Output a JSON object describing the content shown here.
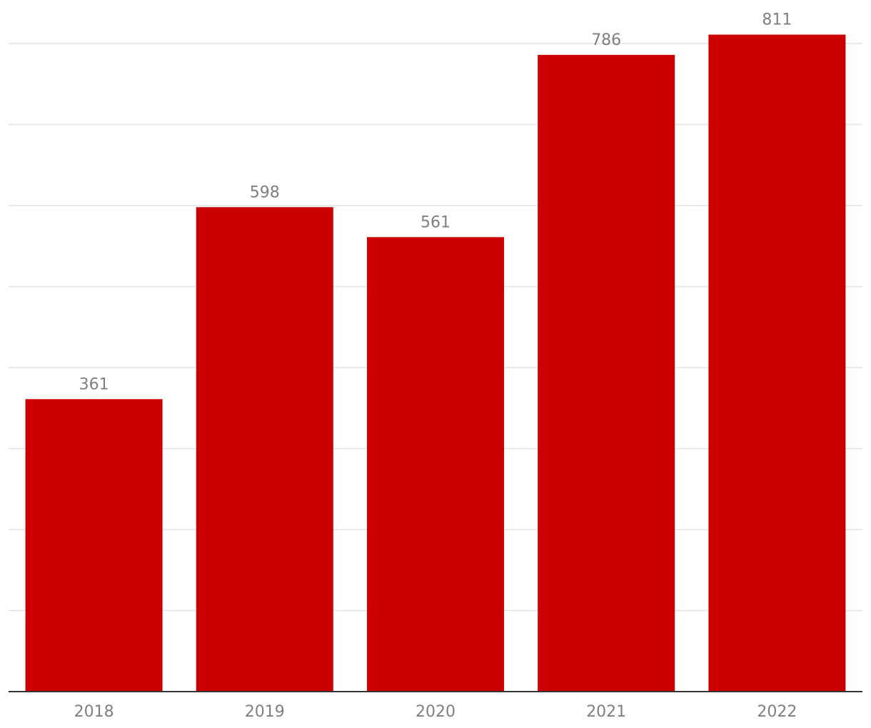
{
  "chart_data": {
    "type": "bar",
    "categories": [
      "2018",
      "2019",
      "2020",
      "2021",
      "2022"
    ],
    "values": [
      361,
      598,
      561,
      786,
      811
    ],
    "data_labels": [
      "361",
      "598",
      "561",
      "786",
      "811"
    ],
    "title": "",
    "xlabel": "",
    "ylabel": "",
    "ylim": [
      0,
      800
    ],
    "y_gridlines": [
      100,
      200,
      300,
      400,
      500,
      600,
      700,
      800
    ],
    "grid": true,
    "legend": "none",
    "bar_color": "#cc0000",
    "text_color": "#7f7f7f",
    "grid_color": "#e3e3e3",
    "baseline_color": "#333333"
  }
}
